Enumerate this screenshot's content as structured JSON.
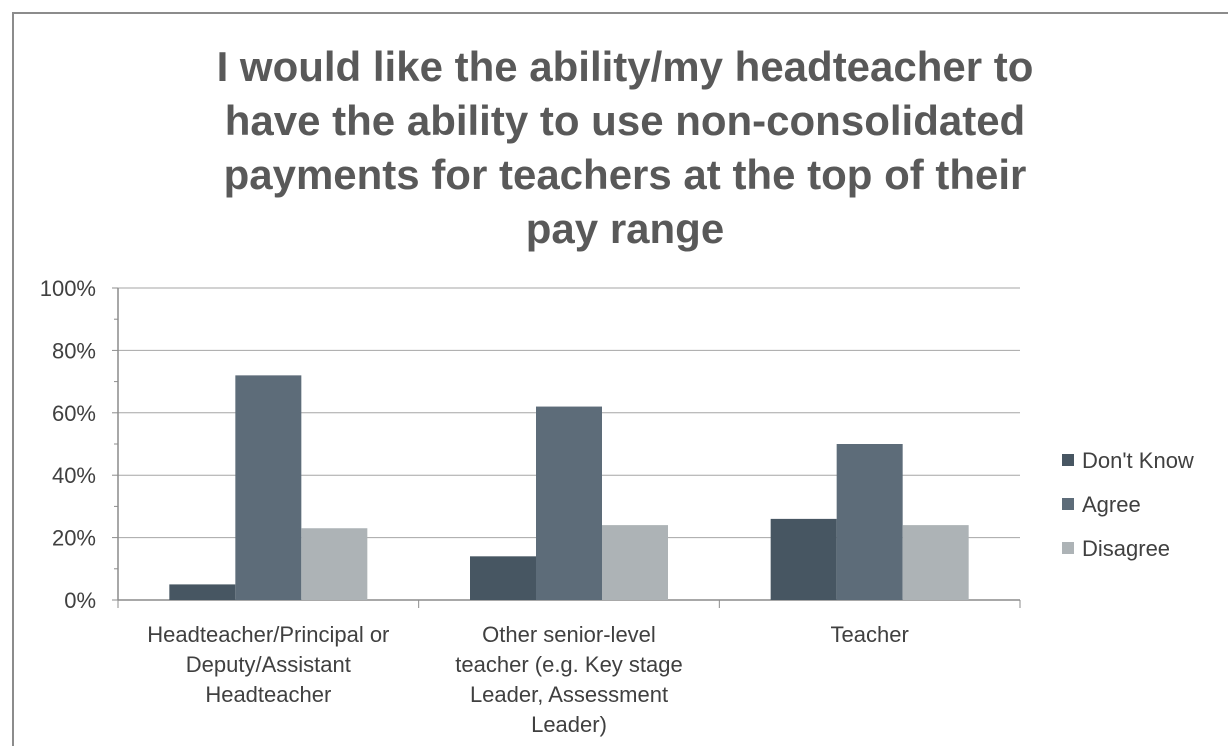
{
  "chart_data": {
    "type": "bar",
    "title_lines": [
      "I would like the ability/my headteacher to",
      "have the ability to use non-consolidated",
      "payments for teachers at the top of their",
      "pay range"
    ],
    "categories": [
      [
        "Headteacher/Principal or",
        "Deputy/Assistant",
        "Headteacher"
      ],
      [
        "Other senior-level",
        "teacher (e.g. Key stage",
        "Leader, Assessment",
        "Leader)"
      ],
      [
        "Teacher"
      ]
    ],
    "series": [
      {
        "name": "Don't Know",
        "color": "#475662",
        "values": [
          5,
          14,
          26
        ]
      },
      {
        "name": "Agree",
        "color": "#5d6c79",
        "values": [
          72,
          62,
          50
        ]
      },
      {
        "name": "Disagree",
        "color": "#adb3b6",
        "values": [
          23,
          24,
          24
        ]
      }
    ],
    "y_ticks": [
      "0%",
      "20%",
      "40%",
      "60%",
      "80%",
      "100%"
    ],
    "ylim": [
      0,
      100
    ],
    "grid": true,
    "legend_position": "right"
  }
}
